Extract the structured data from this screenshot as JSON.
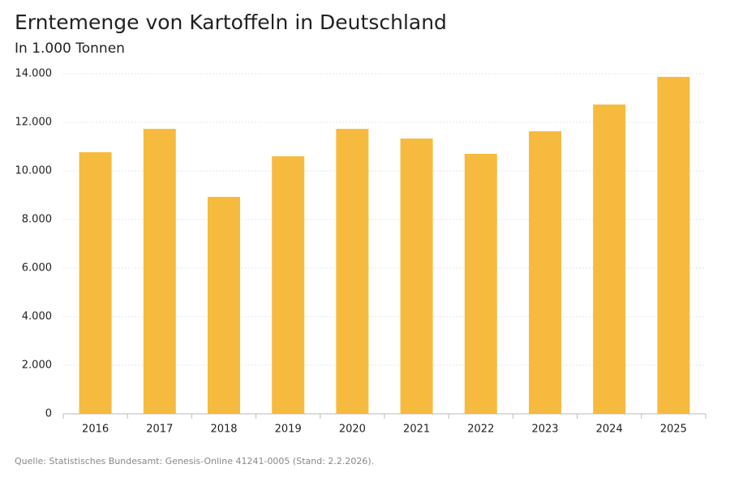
{
  "chart_data": {
    "type": "bar",
    "title": "Erntemenge von Kartoffeln in Deutschland",
    "subtitle": "In 1.000 Tonnen",
    "source": "Quelle: Statistisches Bundesamt: Genesis-Online 41241-0005 (Stand: 2.2.2026).",
    "categories": [
      "2016",
      "2017",
      "2018",
      "2019",
      "2020",
      "2021",
      "2022",
      "2023",
      "2024",
      "2025"
    ],
    "values": [
      10770,
      11730,
      8930,
      10600,
      11730,
      11330,
      10700,
      11630,
      12730,
      13870
    ],
    "color": "#f6bb3e",
    "ylim": [
      0,
      14000
    ],
    "yticks": [
      0,
      {
        "value": 2000,
        "label": "2.000"
      },
      {
        "value": 4000,
        "label": "4.000"
      },
      {
        "value": 6000,
        "label": "6.000"
      },
      {
        "value": 8000,
        "label": "8.000"
      },
      {
        "value": 10000,
        "label": "10.000"
      },
      {
        "value": 12000,
        "label": "12.000"
      },
      {
        "value": 14000,
        "label": "14.000"
      }
    ],
    "grid": true
  }
}
